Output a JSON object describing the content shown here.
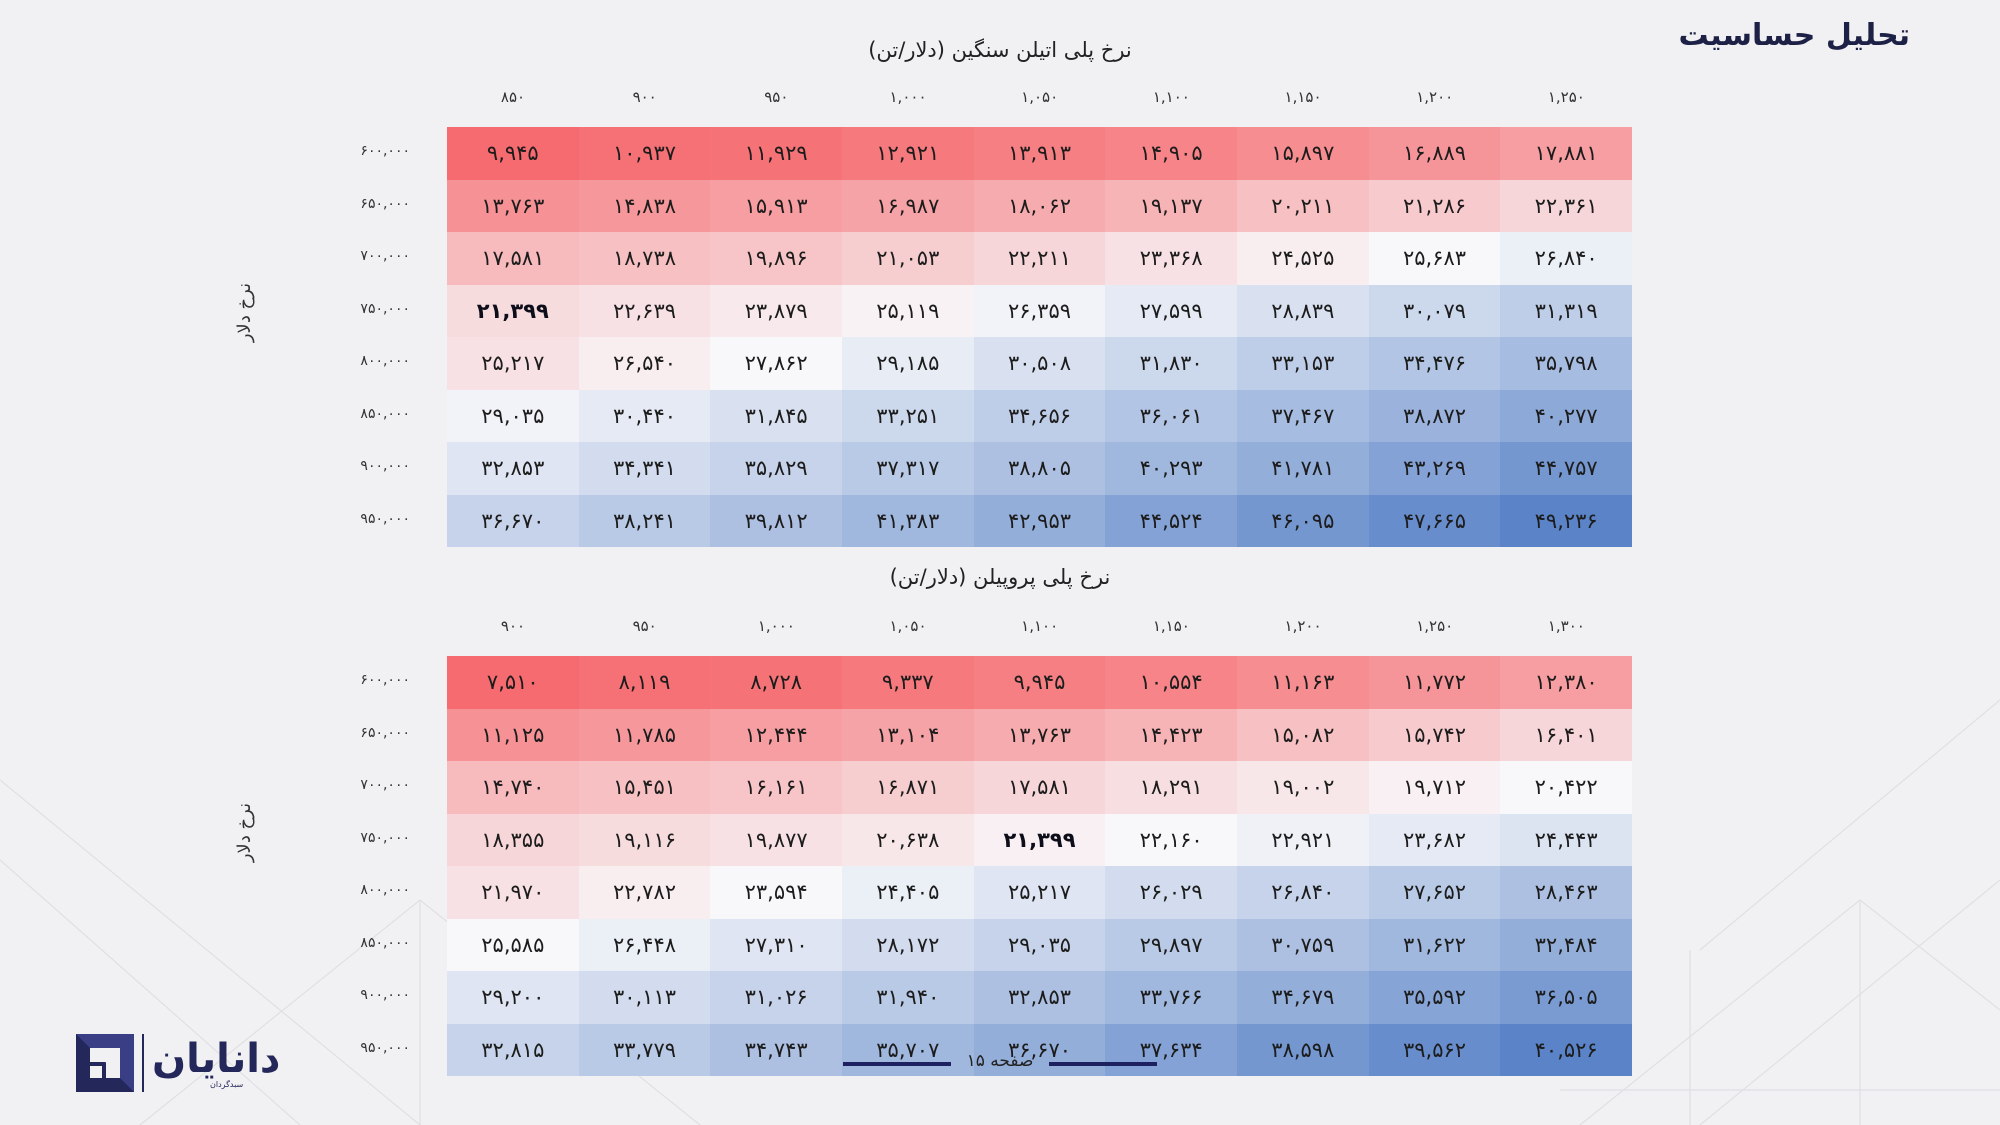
{
  "page": {
    "title": "تحلیل حساسیت",
    "footer": "صفحه ۱۵"
  },
  "logo": {
    "name": "دانایان",
    "tagline": "سبدگردان"
  },
  "tables": [
    {
      "title": "نرخ پلی اتیلن سنگین (دلار/تن)",
      "y_axis_label": "نرخ دلار",
      "columns": [
        "۸۵۰",
        "۹۰۰",
        "۹۵۰",
        "۱,۰۰۰",
        "۱,۰۵۰",
        "۱,۱۰۰",
        "۱,۱۵۰",
        "۱,۲۰۰",
        "۱,۲۵۰"
      ],
      "rows": [
        "۶۰۰,۰۰۰",
        "۶۵۰,۰۰۰",
        "۷۰۰,۰۰۰",
        "۷۵۰,۰۰۰",
        "۸۰۰,۰۰۰",
        "۸۵۰,۰۰۰",
        "۹۰۰,۰۰۰",
        "۹۵۰,۰۰۰"
      ],
      "cells": [
        [
          "۹,۹۴۵",
          "۱۰,۹۳۷",
          "۱۱,۹۲۹",
          "۱۲,۹۲۱",
          "۱۳,۹۱۳",
          "۱۴,۹۰۵",
          "۱۵,۸۹۷",
          "۱۶,۸۸۹",
          "۱۷,۸۸۱"
        ],
        [
          "۱۳,۷۶۳",
          "۱۴,۸۳۸",
          "۱۵,۹۱۳",
          "۱۶,۹۸۷",
          "۱۸,۰۶۲",
          "۱۹,۱۳۷",
          "۲۰,۲۱۱",
          "۲۱,۲۸۶",
          "۲۲,۳۶۱"
        ],
        [
          "۱۷,۵۸۱",
          "۱۸,۷۳۸",
          "۱۹,۸۹۶",
          "۲۱,۰۵۳",
          "۲۲,۲۱۱",
          "۲۳,۳۶۸",
          "۲۴,۵۲۵",
          "۲۵,۶۸۳",
          "۲۶,۸۴۰"
        ],
        [
          "۲۱,۳۹۹",
          "۲۲,۶۳۹",
          "۲۳,۸۷۹",
          "۲۵,۱۱۹",
          "۲۶,۳۵۹",
          "۲۷,۵۹۹",
          "۲۸,۸۳۹",
          "۳۰,۰۷۹",
          "۳۱,۳۱۹"
        ],
        [
          "۲۵,۲۱۷",
          "۲۶,۵۴۰",
          "۲۷,۸۶۲",
          "۲۹,۱۸۵",
          "۳۰,۵۰۸",
          "۳۱,۸۳۰",
          "۳۳,۱۵۳",
          "۳۴,۴۷۶",
          "۳۵,۷۹۸"
        ],
        [
          "۲۹,۰۳۵",
          "۳۰,۴۴۰",
          "۳۱,۸۴۵",
          "۳۳,۲۵۱",
          "۳۴,۶۵۶",
          "۳۶,۰۶۱",
          "۳۷,۴۶۷",
          "۳۸,۸۷۲",
          "۴۰,۲۷۷"
        ],
        [
          "۳۲,۸۵۳",
          "۳۴,۳۴۱",
          "۳۵,۸۲۹",
          "۳۷,۳۱۷",
          "۳۸,۸۰۵",
          "۴۰,۲۹۳",
          "۴۱,۷۸۱",
          "۴۳,۲۶۹",
          "۴۴,۷۵۷"
        ],
        [
          "۳۶,۶۷۰",
          "۳۸,۲۴۱",
          "۳۹,۸۱۲",
          "۴۱,۳۸۳",
          "۴۲,۹۵۳",
          "۴۴,۵۲۴",
          "۴۶,۰۹۵",
          "۴۷,۶۶۵",
          "۴۹,۲۳۶"
        ]
      ],
      "bold_cell": [
        3,
        0
      ],
      "shade": [
        [
          0.0,
          0.02,
          0.03,
          0.05,
          0.07,
          0.09,
          0.12,
          0.15,
          0.18
        ],
        [
          0.14,
          0.16,
          0.18,
          0.2,
          0.23,
          0.26,
          0.3,
          0.34,
          0.38
        ],
        [
          0.28,
          0.3,
          0.32,
          0.35,
          0.38,
          0.42,
          0.46,
          0.5,
          0.54
        ],
        [
          0.4,
          0.42,
          0.45,
          0.48,
          0.52,
          0.56,
          0.6,
          0.64,
          0.68
        ],
        [
          0.42,
          0.46,
          0.5,
          0.55,
          0.6,
          0.64,
          0.68,
          0.72,
          0.76
        ],
        [
          0.52,
          0.56,
          0.6,
          0.64,
          0.68,
          0.72,
          0.76,
          0.8,
          0.84
        ],
        [
          0.58,
          0.62,
          0.66,
          0.7,
          0.74,
          0.78,
          0.82,
          0.87,
          0.92
        ],
        [
          0.66,
          0.7,
          0.74,
          0.78,
          0.82,
          0.87,
          0.92,
          0.96,
          1.0
        ]
      ]
    },
    {
      "title": "نرخ پلی پروپیلن (دلار/تن)",
      "y_axis_label": "نرخ دلار",
      "columns": [
        "۹۰۰",
        "۹۵۰",
        "۱,۰۰۰",
        "۱,۰۵۰",
        "۱,۱۰۰",
        "۱,۱۵۰",
        "۱,۲۰۰",
        "۱,۲۵۰",
        "۱,۳۰۰"
      ],
      "rows": [
        "۶۰۰,۰۰۰",
        "۶۵۰,۰۰۰",
        "۷۰۰,۰۰۰",
        "۷۵۰,۰۰۰",
        "۸۰۰,۰۰۰",
        "۸۵۰,۰۰۰",
        "۹۰۰,۰۰۰",
        "۹۵۰,۰۰۰"
      ],
      "cells": [
        [
          "۷,۵۱۰",
          "۸,۱۱۹",
          "۸,۷۲۸",
          "۹,۳۳۷",
          "۹,۹۴۵",
          "۱۰,۵۵۴",
          "۱۱,۱۶۳",
          "۱۱,۷۷۲",
          "۱۲,۳۸۰"
        ],
        [
          "۱۱,۱۲۵",
          "۱۱,۷۸۵",
          "۱۲,۴۴۴",
          "۱۳,۱۰۴",
          "۱۳,۷۶۳",
          "۱۴,۴۲۳",
          "۱۵,۰۸۲",
          "۱۵,۷۴۲",
          "۱۶,۴۰۱"
        ],
        [
          "۱۴,۷۴۰",
          "۱۵,۴۵۱",
          "۱۶,۱۶۱",
          "۱۶,۸۷۱",
          "۱۷,۵۸۱",
          "۱۸,۲۹۱",
          "۱۹,۰۰۲",
          "۱۹,۷۱۲",
          "۲۰,۴۲۲"
        ],
        [
          "۱۸,۳۵۵",
          "۱۹,۱۱۶",
          "۱۹,۸۷۷",
          "۲۰,۶۳۸",
          "۲۱,۳۹۹",
          "۲۲,۱۶۰",
          "۲۲,۹۲۱",
          "۲۳,۶۸۲",
          "۲۴,۴۴۳"
        ],
        [
          "۲۱,۹۷۰",
          "۲۲,۷۸۲",
          "۲۳,۵۹۴",
          "۲۴,۴۰۵",
          "۲۵,۲۱۷",
          "۲۶,۰۲۹",
          "۲۶,۸۴۰",
          "۲۷,۶۵۲",
          "۲۸,۴۶۳"
        ],
        [
          "۲۵,۵۸۵",
          "۲۶,۴۴۸",
          "۲۷,۳۱۰",
          "۲۸,۱۷۲",
          "۲۹,۰۳۵",
          "۲۹,۸۹۷",
          "۳۰,۷۵۹",
          "۳۱,۶۲۲",
          "۳۲,۴۸۴"
        ],
        [
          "۲۹,۲۰۰",
          "۳۰,۱۱۳",
          "۳۱,۰۲۶",
          "۳۱,۹۴۰",
          "۳۲,۸۵۳",
          "۳۳,۷۶۶",
          "۳۴,۶۷۹",
          "۳۵,۵۹۲",
          "۳۶,۵۰۵"
        ],
        [
          "۳۲,۸۱۵",
          "۳۳,۷۷۹",
          "۳۴,۷۴۳",
          "۳۵,۷۰۷",
          "۳۶,۶۷۰",
          "۳۷,۶۳۴",
          "۳۸,۵۹۸",
          "۳۹,۵۶۲",
          "۴۰,۵۲۶"
        ]
      ],
      "bold_cell": [
        3,
        4
      ],
      "shade": [
        [
          0.0,
          0.02,
          0.03,
          0.05,
          0.07,
          0.09,
          0.12,
          0.15,
          0.18
        ],
        [
          0.14,
          0.16,
          0.18,
          0.2,
          0.23,
          0.26,
          0.3,
          0.34,
          0.38
        ],
        [
          0.28,
          0.3,
          0.32,
          0.35,
          0.38,
          0.41,
          0.44,
          0.47,
          0.5
        ],
        [
          0.38,
          0.4,
          0.42,
          0.44,
          0.47,
          0.5,
          0.53,
          0.56,
          0.59
        ],
        [
          0.42,
          0.46,
          0.5,
          0.54,
          0.58,
          0.62,
          0.66,
          0.7,
          0.74
        ],
        [
          0.5,
          0.54,
          0.58,
          0.62,
          0.66,
          0.7,
          0.74,
          0.78,
          0.82
        ],
        [
          0.58,
          0.62,
          0.66,
          0.7,
          0.74,
          0.78,
          0.82,
          0.86,
          0.9
        ],
        [
          0.66,
          0.7,
          0.74,
          0.78,
          0.82,
          0.87,
          0.92,
          0.96,
          1.0
        ]
      ]
    }
  ],
  "colors": {
    "hot": "#f56b6f",
    "neutral": "#f8f8fa",
    "cold": "#5b84c8",
    "brand": "#24275a"
  }
}
